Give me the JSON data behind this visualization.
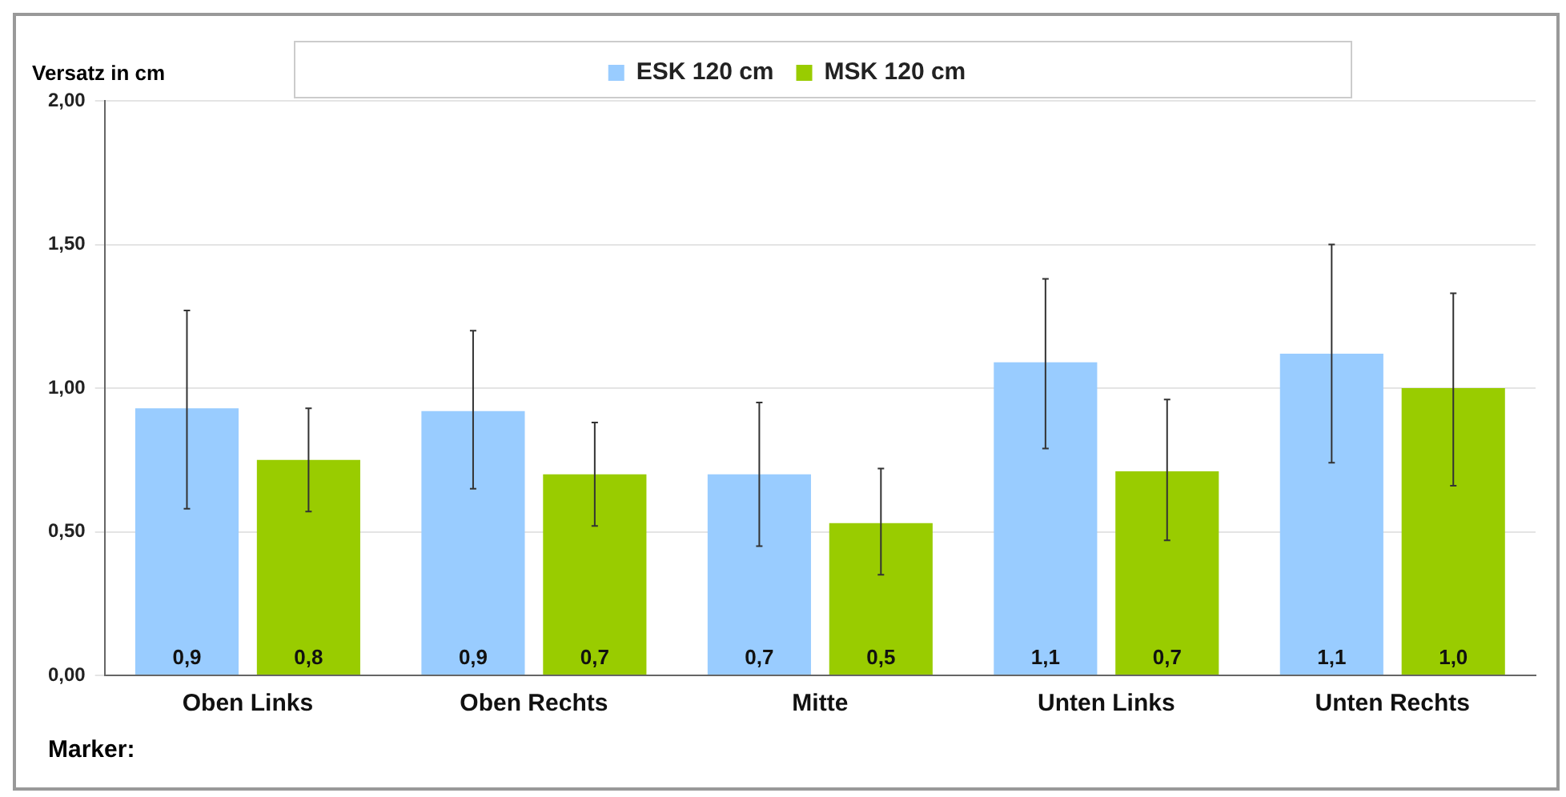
{
  "chart_data": {
    "type": "bar",
    "ylabel": "Versatz in cm",
    "annotations": [
      "Marker:"
    ],
    "categories": [
      "Oben Links",
      "Oben Rechts",
      "Mitte",
      "Unten Links",
      "Unten Rechts"
    ],
    "series": [
      {
        "name": "ESK 120 cm",
        "color": "#99ccff",
        "values": [
          0.93,
          0.92,
          0.7,
          1.09,
          1.12
        ],
        "errors": [
          [
            0.58,
            1.27
          ],
          [
            0.65,
            1.2
          ],
          [
            0.45,
            0.95
          ],
          [
            0.79,
            1.38
          ],
          [
            0.74,
            1.5
          ]
        ],
        "value_labels": [
          "0,9",
          "0,9",
          "0,7",
          "1,1",
          "1,1"
        ]
      },
      {
        "name": "MSK 120 cm",
        "color": "#99cc00",
        "values": [
          0.75,
          0.7,
          0.53,
          0.71,
          1.0
        ],
        "errors": [
          [
            0.57,
            0.93
          ],
          [
            0.52,
            0.88
          ],
          [
            0.35,
            0.72
          ],
          [
            0.47,
            0.96
          ],
          [
            0.66,
            1.33
          ]
        ],
        "value_labels": [
          "0,8",
          "0,7",
          "0,5",
          "0,7",
          "1,0"
        ]
      }
    ],
    "ylim": [
      0,
      2
    ],
    "yticks": [
      {
        "value": 0,
        "label": "0,00"
      },
      {
        "value": 0.5,
        "label": "0,50"
      },
      {
        "value": 1,
        "label": "1,00"
      },
      {
        "value": 1.5,
        "label": "1,50"
      },
      {
        "value": 2,
        "label": "2,00"
      }
    ],
    "grid": "y",
    "legend": "top"
  }
}
